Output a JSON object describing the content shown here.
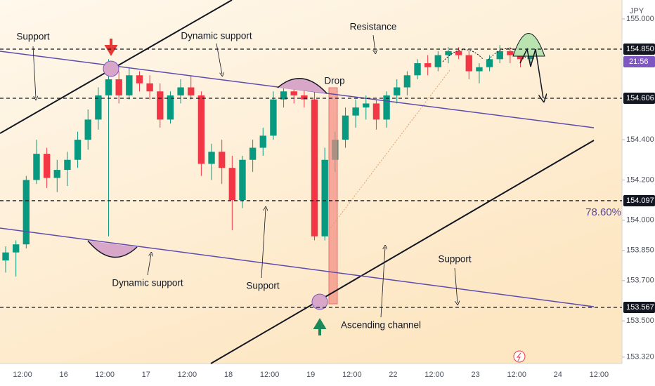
{
  "chart_data": {
    "type": "candlestick",
    "currency": "JPY",
    "categories": [
      null,
      null,
      "12:00",
      null,
      null,
      null,
      "16",
      null,
      null,
      null,
      "12:00",
      null,
      null,
      null,
      "17",
      null,
      null,
      null,
      "12:00",
      null,
      null,
      null,
      "18",
      null,
      null,
      null,
      "12:00",
      null,
      null,
      null,
      "19",
      null,
      null,
      null,
      "12:00",
      null,
      null,
      null,
      "22",
      null,
      null,
      null,
      "12:00",
      null,
      null,
      null,
      "23",
      null,
      null,
      null,
      "12:00",
      null,
      null,
      null,
      "24",
      null,
      null,
      null,
      "12:00"
    ],
    "open": [
      153.8,
      153.84,
      153.88,
      154.2,
      154.33,
      154.21,
      154.25,
      154.3,
      154.4,
      154.5,
      154.62,
      154.7,
      154.62,
      154.72,
      154.68,
      154.64,
      154.5,
      154.62,
      154.66,
      154.62,
      154.28,
      154.34,
      154.26,
      154.1,
      154.3,
      154.36,
      154.42,
      154.6,
      154.64,
      154.62,
      154.6,
      153.92,
      154.3,
      154.4,
      154.52,
      154.56,
      154.58,
      154.5,
      154.62,
      154.66,
      154.72,
      154.78,
      154.76,
      154.82,
      154.84,
      154.82,
      154.74,
      154.76,
      154.8,
      154.84,
      154.82,
      154.8,
      null,
      null,
      null,
      null,
      null,
      null,
      null
    ],
    "high": [
      153.87,
      153.9,
      154.22,
      154.4,
      154.36,
      154.3,
      154.34,
      154.44,
      154.55,
      154.66,
      154.8,
      154.74,
      154.76,
      154.74,
      154.72,
      154.68,
      154.64,
      154.7,
      154.72,
      154.64,
      154.38,
      154.4,
      154.32,
      154.32,
      154.4,
      154.46,
      154.64,
      154.68,
      154.67,
      154.66,
      154.64,
      154.36,
      154.44,
      154.56,
      154.6,
      154.62,
      154.6,
      154.64,
      154.7,
      154.74,
      154.8,
      154.82,
      154.84,
      154.86,
      154.86,
      154.84,
      154.78,
      154.82,
      154.87,
      154.86,
      154.85,
      154.84,
      null,
      null,
      null,
      null,
      null,
      null,
      null
    ],
    "low": [
      153.74,
      153.72,
      153.86,
      154.18,
      154.16,
      154.14,
      154.17,
      154.26,
      154.35,
      154.45,
      153.92,
      154.58,
      154.6,
      154.64,
      154.6,
      154.46,
      154.48,
      154.58,
      154.6,
      154.22,
      154.2,
      154.18,
      153.95,
      154.06,
      154.24,
      154.32,
      154.4,
      154.56,
      154.58,
      154.56,
      153.9,
      153.9,
      154.24,
      154.36,
      154.46,
      154.5,
      154.45,
      154.46,
      154.58,
      154.62,
      154.7,
      154.72,
      154.74,
      154.78,
      154.8,
      154.7,
      154.68,
      154.74,
      154.78,
      154.78,
      154.76,
      154.78,
      null,
      null,
      null,
      null,
      null,
      null,
      null
    ],
    "close": [
      153.84,
      153.88,
      154.2,
      154.33,
      154.21,
      154.25,
      154.3,
      154.4,
      154.5,
      154.62,
      154.7,
      154.62,
      154.72,
      154.68,
      154.64,
      154.5,
      154.62,
      154.66,
      154.62,
      154.28,
      154.34,
      154.26,
      154.1,
      154.3,
      154.36,
      154.42,
      154.6,
      154.64,
      154.62,
      154.6,
      153.92,
      154.3,
      154.4,
      154.52,
      154.56,
      154.58,
      154.5,
      154.62,
      154.66,
      154.72,
      154.78,
      154.76,
      154.82,
      154.84,
      154.82,
      154.74,
      154.76,
      154.8,
      154.84,
      154.82,
      154.8,
      154.82,
      null,
      null,
      null,
      null,
      null,
      null,
      null
    ],
    "colors": {
      "up": "#089981",
      "down": "#f23645"
    },
    "ylim": [
      153.288,
      155.094
    ],
    "yticks": [
      {
        "value": 155,
        "label": "155.000"
      },
      {
        "value": 154.4,
        "label": "154.400"
      },
      {
        "value": 154.2,
        "label": "154.200"
      },
      {
        "value": 154,
        "label": "154.000"
      },
      {
        "value": 153.85,
        "label": "153.850"
      },
      {
        "value": 153.7,
        "label": "153.700"
      },
      {
        "value": 153.5,
        "label": "153.500"
      },
      {
        "value": 153.32,
        "label": "153.320"
      }
    ],
    "price_levels": [
      {
        "value": 154.85,
        "label": "154.850"
      },
      {
        "value": 154.606,
        "label": "154.606"
      },
      {
        "value": 154.097,
        "label": "154.097"
      },
      {
        "value": 153.567,
        "label": "153.567"
      }
    ],
    "countdown": "21:56",
    "fib_label": "78.60%",
    "annotations": [
      "Support",
      "Dynamic support",
      "Resistance",
      "Drop",
      "Dynamic support",
      "Support",
      "Ascending channel",
      "Support"
    ]
  }
}
